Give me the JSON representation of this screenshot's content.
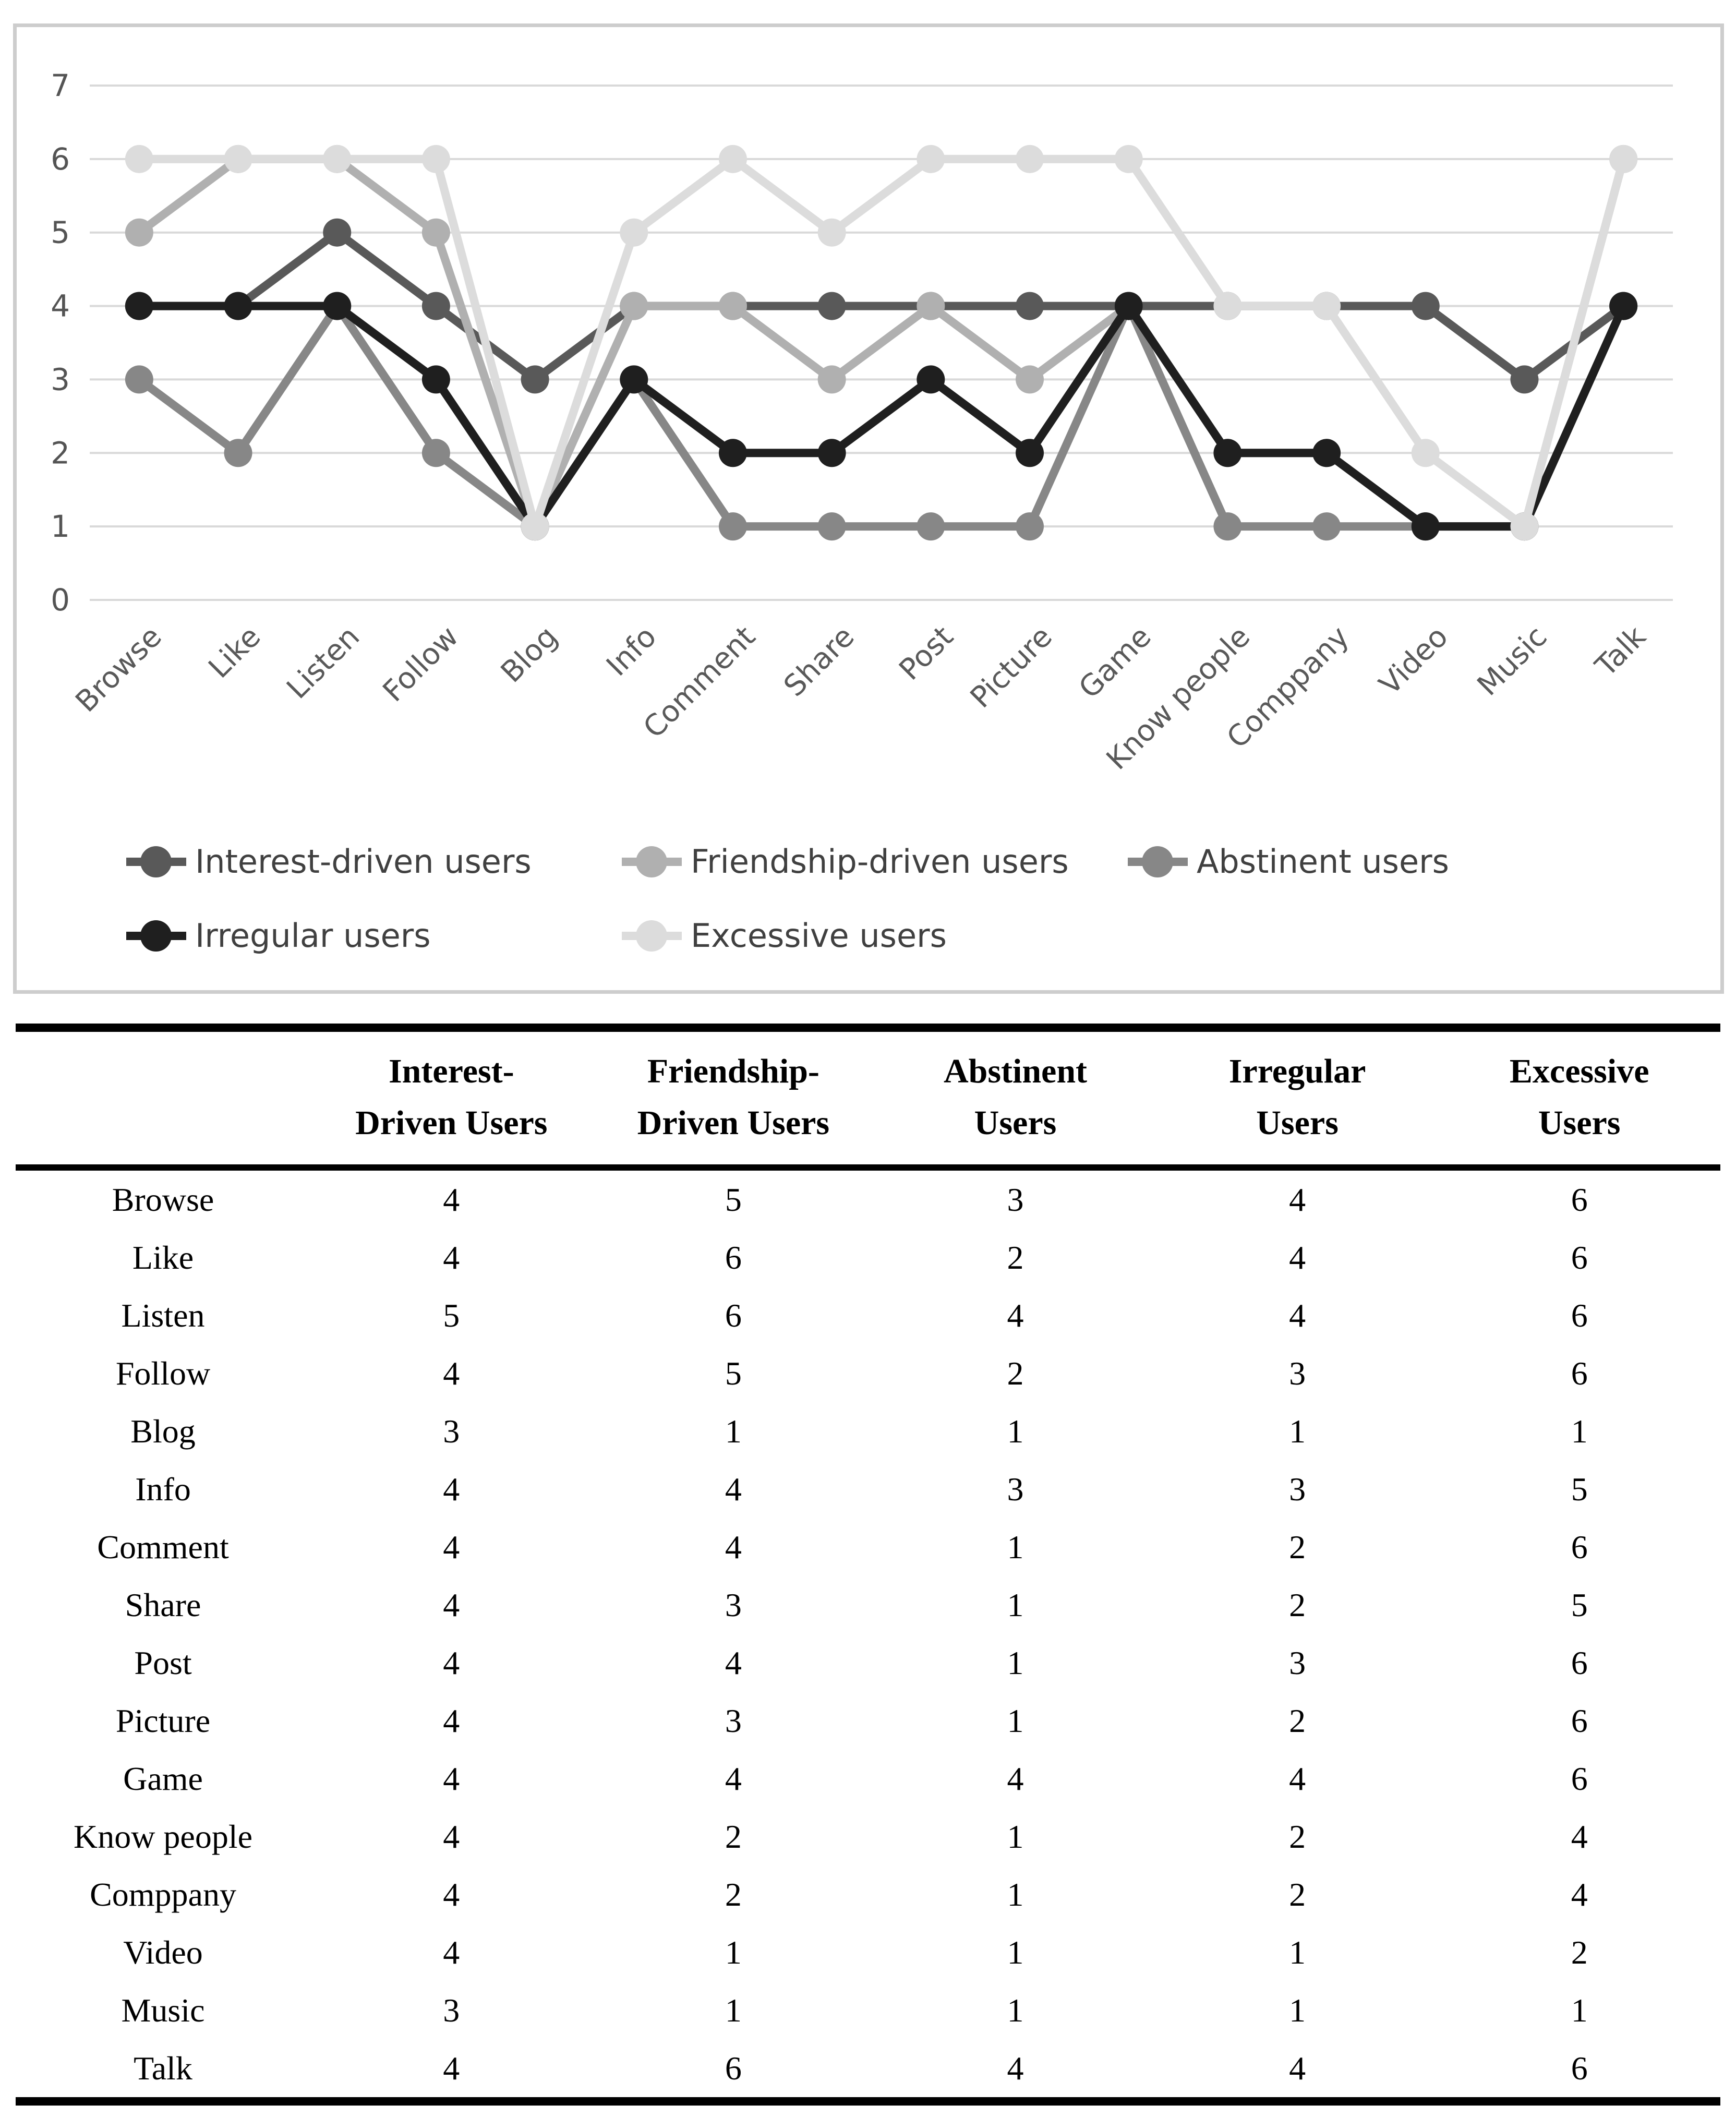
{
  "chart_data": {
    "type": "line",
    "title": "",
    "xlabel": "",
    "ylabel": "",
    "categories": [
      "Browse",
      "Like",
      "Listen",
      "Follow",
      "Blog",
      "Info",
      "Comment",
      "Share",
      "Post",
      "Picture",
      "Game",
      "Know people",
      "Comppany",
      "Video",
      "Music",
      "Talk"
    ],
    "series": [
      {
        "name": "Interest-driven users",
        "color": "#595959",
        "values": [
          4,
          4,
          5,
          4,
          3,
          4,
          4,
          4,
          4,
          4,
          4,
          4,
          4,
          4,
          3,
          4
        ]
      },
      {
        "name": "Friendship-driven users",
        "color": "#b0b0b0",
        "values": [
          5,
          6,
          6,
          5,
          1,
          4,
          4,
          3,
          4,
          3,
          4,
          2,
          2,
          1,
          1,
          6
        ]
      },
      {
        "name": "Abstinent users",
        "color": "#878787",
        "values": [
          3,
          2,
          4,
          2,
          1,
          3,
          1,
          1,
          1,
          1,
          4,
          1,
          1,
          1,
          1,
          4
        ]
      },
      {
        "name": "Irregular users",
        "color": "#1f1f1f",
        "values": [
          4,
          4,
          4,
          3,
          1,
          3,
          2,
          2,
          3,
          2,
          4,
          2,
          2,
          1,
          1,
          4
        ]
      },
      {
        "name": "Excessive users",
        "color": "#dcdcdc",
        "values": [
          6,
          6,
          6,
          6,
          1,
          5,
          6,
          5,
          6,
          6,
          6,
          4,
          4,
          2,
          1,
          6
        ]
      }
    ],
    "ylim": [
      0,
      7
    ],
    "y_ticks": [
      0,
      1,
      2,
      3,
      4,
      5,
      6,
      7
    ],
    "grid": "horizontal",
    "grid_color": "#d9d9d9",
    "axis_tick_color": "#545454",
    "x_label_color": "#595959",
    "legend_text_color": "#404040",
    "panel_border_color": "#cdcdcd",
    "legend_position": "bottom"
  },
  "table": {
    "row_header": "",
    "columns": [
      "Interest-\nDriven Users",
      "Friendship-\nDriven Users",
      "Abstinent\nUsers",
      "Irregular\nUsers",
      "Excessive\nUsers"
    ],
    "rows": [
      {
        "label": "Browse",
        "values": [
          4,
          5,
          3,
          4,
          6
        ]
      },
      {
        "label": "Like",
        "values": [
          4,
          6,
          2,
          4,
          6
        ]
      },
      {
        "label": "Listen",
        "values": [
          5,
          6,
          4,
          4,
          6
        ]
      },
      {
        "label": "Follow",
        "values": [
          4,
          5,
          2,
          3,
          6
        ]
      },
      {
        "label": "Blog",
        "values": [
          3,
          1,
          1,
          1,
          1
        ]
      },
      {
        "label": "Info",
        "values": [
          4,
          4,
          3,
          3,
          5
        ]
      },
      {
        "label": "Comment",
        "values": [
          4,
          4,
          1,
          2,
          6
        ]
      },
      {
        "label": "Share",
        "values": [
          4,
          3,
          1,
          2,
          5
        ]
      },
      {
        "label": "Post",
        "values": [
          4,
          4,
          1,
          3,
          6
        ]
      },
      {
        "label": "Picture",
        "values": [
          4,
          3,
          1,
          2,
          6
        ]
      },
      {
        "label": "Game",
        "values": [
          4,
          4,
          4,
          4,
          6
        ]
      },
      {
        "label": "Know people",
        "values": [
          4,
          2,
          1,
          2,
          4
        ]
      },
      {
        "label": "Comppany",
        "values": [
          4,
          2,
          1,
          2,
          4
        ]
      },
      {
        "label": "Video",
        "values": [
          4,
          1,
          1,
          1,
          2
        ]
      },
      {
        "label": "Music",
        "values": [
          3,
          1,
          1,
          1,
          1
        ]
      },
      {
        "label": "Talk",
        "values": [
          4,
          6,
          4,
          4,
          6
        ]
      }
    ]
  }
}
